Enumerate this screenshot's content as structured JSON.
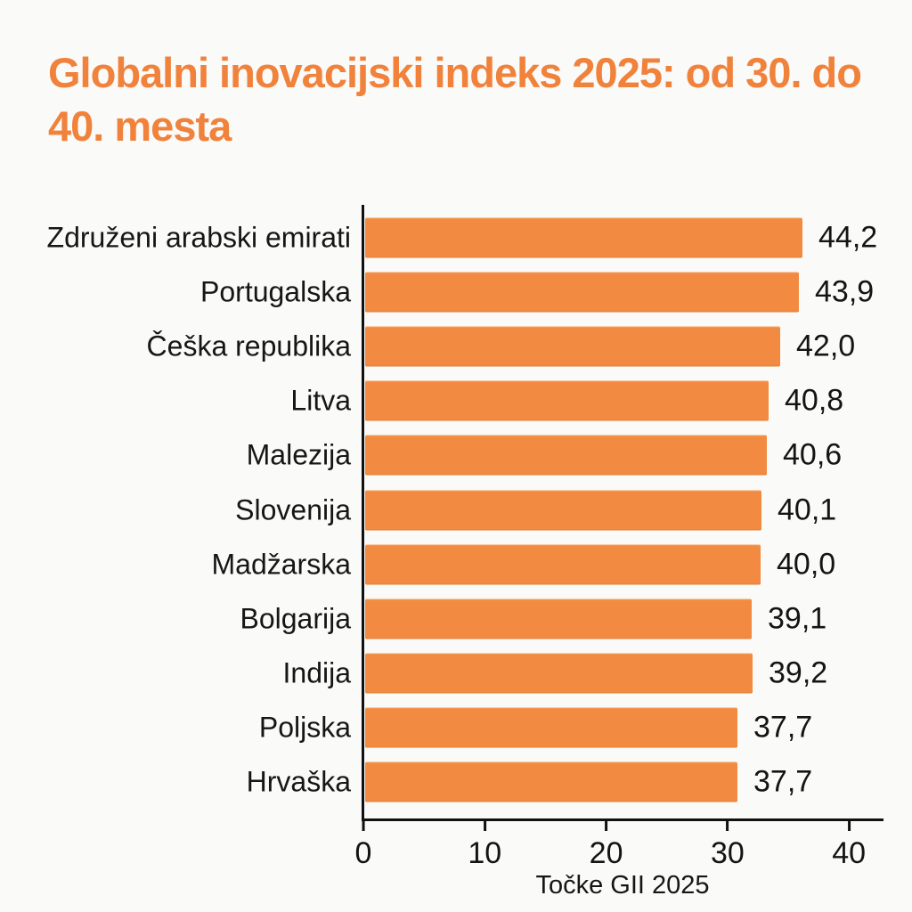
{
  "page": {
    "background_color": "#fafaf8",
    "text_color": "#161616",
    "axis_color": "#111111"
  },
  "title": {
    "text": "Globalni inovacijski indeks 2025: od 30. do 40. mesta",
    "color": "#f0823c"
  },
  "chart_data": {
    "type": "bar",
    "orientation": "horizontal",
    "title": "Globalni inovacijski indeks 2025: od 30. do 40. mesta",
    "xlabel": "Točke GII 2025",
    "ylabel": "",
    "categories": [
      "Združeni arabski emirati",
      "Portugalska",
      "Češka republika",
      "Litva",
      "Malezija",
      "Slovenija",
      "Madžarska",
      "Bolgarija",
      "Indija",
      "Poljska",
      "Hrvaška"
    ],
    "values": [
      44.2,
      43.9,
      42.0,
      40.8,
      40.6,
      40.1,
      40.0,
      39.1,
      39.2,
      37.7,
      37.7
    ],
    "value_labels": [
      "44,2",
      "43,9",
      "42,0",
      "40,8",
      "40,6",
      "40,1",
      "40,0",
      "39,1",
      "39,2",
      "37,7",
      "37,7"
    ],
    "xticks": [
      0,
      10,
      20,
      30,
      40
    ],
    "xtick_labels": [
      "0",
      "10",
      "20",
      "30",
      "40"
    ],
    "xlim": [
      0,
      43
    ],
    "grid": false,
    "legend": "none",
    "bar_color": "#f28b41",
    "decimal_separator": ","
  }
}
